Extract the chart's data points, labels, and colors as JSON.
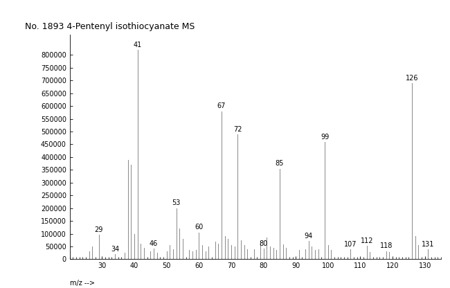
{
  "title": "No. 1893 4-Pentenyl isothiocyanate MS",
  "xlabel": "m/z -->",
  "xlim": [
    20,
    135
  ],
  "ylim": [
    0,
    880000
  ],
  "xticks": [
    30,
    40,
    50,
    60,
    70,
    80,
    90,
    100,
    110,
    120,
    130
  ],
  "yticks": [
    0,
    50000,
    100000,
    150000,
    200000,
    250000,
    300000,
    350000,
    400000,
    450000,
    500000,
    550000,
    600000,
    650000,
    700000,
    750000,
    800000
  ],
  "peaks": [
    {
      "mz": 26,
      "intensity": 30000,
      "label": ""
    },
    {
      "mz": 27,
      "intensity": 50000,
      "label": ""
    },
    {
      "mz": 29,
      "intensity": 95000,
      "label": "29"
    },
    {
      "mz": 34,
      "intensity": 20000,
      "label": "34"
    },
    {
      "mz": 37,
      "intensity": 25000,
      "label": ""
    },
    {
      "mz": 38,
      "intensity": 390000,
      "label": ""
    },
    {
      "mz": 39,
      "intensity": 370000,
      "label": ""
    },
    {
      "mz": 40,
      "intensity": 100000,
      "label": ""
    },
    {
      "mz": 41,
      "intensity": 820000,
      "label": "41"
    },
    {
      "mz": 42,
      "intensity": 60000,
      "label": ""
    },
    {
      "mz": 43,
      "intensity": 45000,
      "label": ""
    },
    {
      "mz": 45,
      "intensity": 30000,
      "label": ""
    },
    {
      "mz": 46,
      "intensity": 42000,
      "label": "46"
    },
    {
      "mz": 47,
      "intensity": 25000,
      "label": ""
    },
    {
      "mz": 50,
      "intensity": 30000,
      "label": ""
    },
    {
      "mz": 51,
      "intensity": 55000,
      "label": ""
    },
    {
      "mz": 52,
      "intensity": 40000,
      "label": ""
    },
    {
      "mz": 53,
      "intensity": 200000,
      "label": "53"
    },
    {
      "mz": 54,
      "intensity": 120000,
      "label": ""
    },
    {
      "mz": 55,
      "intensity": 80000,
      "label": ""
    },
    {
      "mz": 57,
      "intensity": 35000,
      "label": ""
    },
    {
      "mz": 58,
      "intensity": 30000,
      "label": ""
    },
    {
      "mz": 59,
      "intensity": 35000,
      "label": ""
    },
    {
      "mz": 60,
      "intensity": 105000,
      "label": "60"
    },
    {
      "mz": 61,
      "intensity": 55000,
      "label": ""
    },
    {
      "mz": 62,
      "intensity": 30000,
      "label": ""
    },
    {
      "mz": 63,
      "intensity": 50000,
      "label": ""
    },
    {
      "mz": 65,
      "intensity": 70000,
      "label": ""
    },
    {
      "mz": 66,
      "intensity": 60000,
      "label": ""
    },
    {
      "mz": 67,
      "intensity": 580000,
      "label": "67"
    },
    {
      "mz": 68,
      "intensity": 90000,
      "label": ""
    },
    {
      "mz": 69,
      "intensity": 80000,
      "label": ""
    },
    {
      "mz": 70,
      "intensity": 55000,
      "label": ""
    },
    {
      "mz": 71,
      "intensity": 50000,
      "label": ""
    },
    {
      "mz": 72,
      "intensity": 490000,
      "label": "72"
    },
    {
      "mz": 73,
      "intensity": 75000,
      "label": ""
    },
    {
      "mz": 74,
      "intensity": 55000,
      "label": ""
    },
    {
      "mz": 75,
      "intensity": 40000,
      "label": ""
    },
    {
      "mz": 77,
      "intensity": 40000,
      "label": ""
    },
    {
      "mz": 79,
      "intensity": 65000,
      "label": ""
    },
    {
      "mz": 80,
      "intensity": 42000,
      "label": "80"
    },
    {
      "mz": 81,
      "intensity": 85000,
      "label": ""
    },
    {
      "mz": 82,
      "intensity": 50000,
      "label": ""
    },
    {
      "mz": 83,
      "intensity": 45000,
      "label": ""
    },
    {
      "mz": 84,
      "intensity": 35000,
      "label": ""
    },
    {
      "mz": 85,
      "intensity": 355000,
      "label": "85"
    },
    {
      "mz": 86,
      "intensity": 58000,
      "label": ""
    },
    {
      "mz": 87,
      "intensity": 45000,
      "label": ""
    },
    {
      "mz": 91,
      "intensity": 35000,
      "label": ""
    },
    {
      "mz": 93,
      "intensity": 40000,
      "label": ""
    },
    {
      "mz": 94,
      "intensity": 72000,
      "label": "94"
    },
    {
      "mz": 95,
      "intensity": 50000,
      "label": ""
    },
    {
      "mz": 96,
      "intensity": 35000,
      "label": ""
    },
    {
      "mz": 97,
      "intensity": 40000,
      "label": ""
    },
    {
      "mz": 99,
      "intensity": 460000,
      "label": "99"
    },
    {
      "mz": 100,
      "intensity": 55000,
      "label": ""
    },
    {
      "mz": 101,
      "intensity": 35000,
      "label": ""
    },
    {
      "mz": 107,
      "intensity": 38000,
      "label": "107"
    },
    {
      "mz": 112,
      "intensity": 52000,
      "label": "112"
    },
    {
      "mz": 113,
      "intensity": 28000,
      "label": ""
    },
    {
      "mz": 118,
      "intensity": 32000,
      "label": "118"
    },
    {
      "mz": 119,
      "intensity": 28000,
      "label": ""
    },
    {
      "mz": 126,
      "intensity": 690000,
      "label": "126"
    },
    {
      "mz": 127,
      "intensity": 90000,
      "label": ""
    },
    {
      "mz": 128,
      "intensity": 55000,
      "label": ""
    },
    {
      "mz": 131,
      "intensity": 38000,
      "label": "131"
    }
  ],
  "background_color": "#ffffff",
  "line_color": "#888888",
  "title_fontsize": 9,
  "tick_fontsize": 7,
  "label_fontsize": 7
}
